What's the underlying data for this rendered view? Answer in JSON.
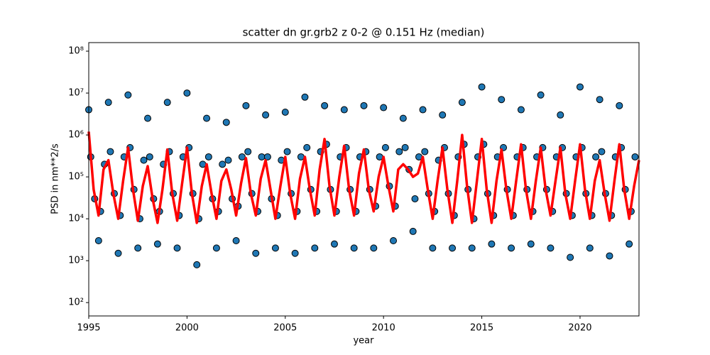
{
  "chart_data": {
    "type": "scatter-median",
    "title": "scatter dn gr.grb2 z 0-2 @ 0.151 Hz (median)",
    "xlabel": "year",
    "ylabel": "PSD in nm**2/s",
    "xlim": [
      1995,
      2023
    ],
    "xticks": [
      1995,
      2000,
      2005,
      2010,
      2015,
      2020
    ],
    "ylim": [
      48,
      160000000
    ],
    "log_y": true,
    "yticks": [
      {
        "value": 100,
        "label": "10²"
      },
      {
        "value": 1000,
        "label": "10³"
      },
      {
        "value": 10000,
        "label": "10⁴"
      },
      {
        "value": 100000,
        "label": "10⁵"
      },
      {
        "value": 1000000,
        "label": "10⁶"
      },
      {
        "value": 10000000,
        "label": "10⁷"
      },
      {
        "value": 100000000,
        "label": "10⁸"
      }
    ],
    "series": [
      {
        "kind": "scatter",
        "color": "#1f77b4",
        "x": [
          1995,
          1995.1,
          1995.3,
          1995.5,
          1995.6,
          1995.8,
          1996,
          1996.1,
          1996.3,
          1996.5,
          1996.6,
          1996.8,
          1997,
          1997.1,
          1997.3,
          1997.5,
          1997.6,
          1997.8,
          1998,
          1998.1,
          1998.3,
          1998.5,
          1998.6,
          1998.8,
          1999,
          1999.1,
          1999.3,
          1999.5,
          1999.6,
          1999.8,
          2000,
          2000.1,
          2000.3,
          2000.5,
          2000.6,
          2000.8,
          2001,
          2001.1,
          2001.3,
          2001.5,
          2001.6,
          2001.8,
          2002,
          2002.1,
          2002.3,
          2002.5,
          2002.6,
          2002.8,
          2003,
          2003.1,
          2003.3,
          2003.5,
          2003.6,
          2003.8,
          2004,
          2004.1,
          2004.3,
          2004.5,
          2004.6,
          2004.8,
          2005,
          2005.1,
          2005.3,
          2005.5,
          2005.6,
          2005.8,
          2006,
          2006.1,
          2006.3,
          2006.5,
          2006.6,
          2006.8,
          2007,
          2007.1,
          2007.3,
          2007.5,
          2007.6,
          2007.8,
          2008,
          2008.1,
          2008.3,
          2008.5,
          2008.6,
          2008.8,
          2009,
          2009.1,
          2009.3,
          2009.5,
          2009.6,
          2009.8,
          2010,
          2010.1,
          2010.3,
          2010.5,
          2010.6,
          2010.8,
          2011,
          2011.1,
          2011.3,
          2011.5,
          2011.6,
          2011.8,
          2012,
          2012.1,
          2012.3,
          2012.5,
          2012.6,
          2012.8,
          2013,
          2013.1,
          2013.3,
          2013.5,
          2013.6,
          2013.8,
          2014,
          2014.1,
          2014.3,
          2014.5,
          2014.6,
          2014.8,
          2015,
          2015.1,
          2015.3,
          2015.5,
          2015.6,
          2015.8,
          2016,
          2016.1,
          2016.3,
          2016.5,
          2016.6,
          2016.8,
          2017,
          2017.1,
          2017.3,
          2017.5,
          2017.6,
          2017.8,
          2018,
          2018.1,
          2018.3,
          2018.5,
          2018.6,
          2018.8,
          2019,
          2019.1,
          2019.3,
          2019.5,
          2019.6,
          2019.8,
          2020,
          2020.1,
          2020.3,
          2020.5,
          2020.6,
          2020.8,
          2021,
          2021.1,
          2021.3,
          2021.5,
          2021.6,
          2021.8,
          2022,
          2022.1,
          2022.3,
          2022.5,
          2022.6,
          2022.8
        ],
        "values": [
          4000000,
          300000,
          30000,
          3000,
          15000,
          200000,
          6000000,
          400000,
          40000,
          1500,
          12000,
          300000,
          9000000,
          500000,
          50000,
          2000,
          10000,
          250000,
          2500000,
          300000,
          30000,
          2500,
          15000,
          200000,
          6000000,
          400000,
          40000,
          2000,
          12000,
          300000,
          10000000,
          500000,
          40000,
          800,
          10000,
          200000,
          2500000,
          300000,
          30000,
          2000,
          15000,
          200000,
          2000000,
          250000,
          30000,
          3000,
          20000,
          300000,
          5000000,
          400000,
          40000,
          1500,
          15000,
          300000,
          3000000,
          300000,
          30000,
          2000,
          12000,
          250000,
          3500000,
          400000,
          40000,
          1500,
          15000,
          300000,
          8000000,
          500000,
          50000,
          2000,
          15000,
          400000,
          5000000,
          600000,
          50000,
          2500,
          15000,
          300000,
          4000000,
          500000,
          50000,
          2000,
          15000,
          300000,
          5000000,
          400000,
          50000,
          2000,
          20000,
          300000,
          4500000,
          500000,
          60000,
          3000,
          20000,
          400000,
          2500000,
          500000,
          150000,
          5000,
          30000,
          300000,
          4000000,
          400000,
          40000,
          2000,
          15000,
          250000,
          3000000,
          500000,
          40000,
          2000,
          12000,
          300000,
          6000000,
          600000,
          50000,
          2000,
          10000,
          300000,
          14000000,
          600000,
          40000,
          2500,
          12000,
          300000,
          7000000,
          500000,
          50000,
          2000,
          12000,
          300000,
          4000000,
          500000,
          50000,
          2500,
          15000,
          300000,
          9000000,
          500000,
          50000,
          2000,
          15000,
          300000,
          3000000,
          500000,
          40000,
          1200,
          12000,
          300000,
          14000000,
          500000,
          40000,
          2000,
          12000,
          300000,
          7000000,
          400000,
          40000,
          1300,
          12000,
          300000,
          5000000,
          500000,
          50000,
          2500,
          15000,
          300000
        ]
      },
      {
        "kind": "line",
        "color": "#ff0000",
        "x": [
          1995,
          1995.25,
          1995.5,
          1995.75,
          1996,
          1996.25,
          1996.5,
          1996.75,
          1997,
          1997.25,
          1997.5,
          1997.75,
          1998,
          1998.25,
          1998.5,
          1998.75,
          1999,
          1999.25,
          1999.5,
          1999.75,
          2000,
          2000.25,
          2000.5,
          2000.75,
          2001,
          2001.25,
          2001.5,
          2001.75,
          2002,
          2002.25,
          2002.5,
          2002.75,
          2003,
          2003.25,
          2003.5,
          2003.75,
          2004,
          2004.25,
          2004.5,
          2004.75,
          2005,
          2005.25,
          2005.5,
          2005.75,
          2006,
          2006.25,
          2006.5,
          2006.75,
          2007,
          2007.25,
          2007.5,
          2007.75,
          2008,
          2008.25,
          2008.5,
          2008.75,
          2009,
          2009.25,
          2009.5,
          2009.75,
          2010,
          2010.25,
          2010.5,
          2010.75,
          2011,
          2011.25,
          2011.5,
          2011.75,
          2012,
          2012.25,
          2012.5,
          2012.75,
          2013,
          2013.25,
          2013.5,
          2013.75,
          2014,
          2014.25,
          2014.5,
          2014.75,
          2015,
          2015.25,
          2015.5,
          2015.75,
          2016,
          2016.25,
          2016.5,
          2016.75,
          2017,
          2017.25,
          2017.5,
          2017.75,
          2018,
          2018.25,
          2018.5,
          2018.75,
          2019,
          2019.25,
          2019.5,
          2019.75,
          2020,
          2020.25,
          2020.5,
          2020.75,
          2021,
          2021.25,
          2021.5,
          2021.75,
          2022,
          2022.25,
          2022.5,
          2022.75,
          2023
        ],
        "values": [
          1200000,
          50000,
          12000,
          150000,
          250000,
          40000,
          10000,
          80000,
          500000,
          50000,
          9000,
          60000,
          180000,
          30000,
          8000,
          50000,
          450000,
          40000,
          9000,
          70000,
          500000,
          40000,
          8000,
          60000,
          200000,
          40000,
          10000,
          80000,
          150000,
          50000,
          12000,
          70000,
          280000,
          40000,
          12000,
          90000,
          250000,
          50000,
          10000,
          60000,
          300000,
          40000,
          10000,
          90000,
          300000,
          50000,
          12000,
          150000,
          800000,
          60000,
          12000,
          100000,
          550000,
          50000,
          12000,
          120000,
          450000,
          50000,
          15000,
          100000,
          300000,
          60000,
          15000,
          150000,
          200000,
          150000,
          100000,
          120000,
          300000,
          50000,
          10000,
          80000,
          500000,
          50000,
          8000,
          80000,
          1000000,
          60000,
          8000,
          80000,
          800000,
          50000,
          8000,
          80000,
          450000,
          50000,
          10000,
          80000,
          600000,
          50000,
          10000,
          80000,
          500000,
          50000,
          12000,
          80000,
          500000,
          40000,
          10000,
          80000,
          600000,
          50000,
          10000,
          80000,
          250000,
          40000,
          9000,
          80000,
          600000,
          50000,
          10000,
          60000,
          250000
        ]
      }
    ]
  }
}
